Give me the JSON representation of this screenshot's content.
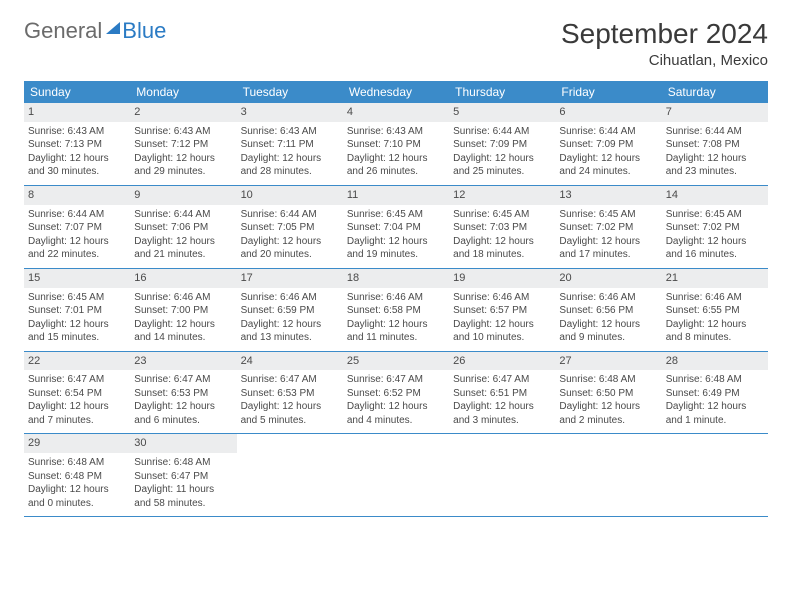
{
  "brand": {
    "part1": "General",
    "part2": "Blue"
  },
  "title": "September 2024",
  "location": "Cihuatlan, Mexico",
  "colors": {
    "header_bg": "#3b8bc9",
    "header_text": "#ffffff",
    "day_num_bg": "#ecedee",
    "border": "#3b8bc9",
    "text": "#4a4a4a",
    "brand_blue": "#2b7bc4"
  },
  "weekdays": [
    "Sunday",
    "Monday",
    "Tuesday",
    "Wednesday",
    "Thursday",
    "Friday",
    "Saturday"
  ],
  "weeks": [
    [
      {
        "n": "1",
        "sr": "Sunrise: 6:43 AM",
        "ss": "Sunset: 7:13 PM",
        "d1": "Daylight: 12 hours",
        "d2": "and 30 minutes."
      },
      {
        "n": "2",
        "sr": "Sunrise: 6:43 AM",
        "ss": "Sunset: 7:12 PM",
        "d1": "Daylight: 12 hours",
        "d2": "and 29 minutes."
      },
      {
        "n": "3",
        "sr": "Sunrise: 6:43 AM",
        "ss": "Sunset: 7:11 PM",
        "d1": "Daylight: 12 hours",
        "d2": "and 28 minutes."
      },
      {
        "n": "4",
        "sr": "Sunrise: 6:43 AM",
        "ss": "Sunset: 7:10 PM",
        "d1": "Daylight: 12 hours",
        "d2": "and 26 minutes."
      },
      {
        "n": "5",
        "sr": "Sunrise: 6:44 AM",
        "ss": "Sunset: 7:09 PM",
        "d1": "Daylight: 12 hours",
        "d2": "and 25 minutes."
      },
      {
        "n": "6",
        "sr": "Sunrise: 6:44 AM",
        "ss": "Sunset: 7:09 PM",
        "d1": "Daylight: 12 hours",
        "d2": "and 24 minutes."
      },
      {
        "n": "7",
        "sr": "Sunrise: 6:44 AM",
        "ss": "Sunset: 7:08 PM",
        "d1": "Daylight: 12 hours",
        "d2": "and 23 minutes."
      }
    ],
    [
      {
        "n": "8",
        "sr": "Sunrise: 6:44 AM",
        "ss": "Sunset: 7:07 PM",
        "d1": "Daylight: 12 hours",
        "d2": "and 22 minutes."
      },
      {
        "n": "9",
        "sr": "Sunrise: 6:44 AM",
        "ss": "Sunset: 7:06 PM",
        "d1": "Daylight: 12 hours",
        "d2": "and 21 minutes."
      },
      {
        "n": "10",
        "sr": "Sunrise: 6:44 AM",
        "ss": "Sunset: 7:05 PM",
        "d1": "Daylight: 12 hours",
        "d2": "and 20 minutes."
      },
      {
        "n": "11",
        "sr": "Sunrise: 6:45 AM",
        "ss": "Sunset: 7:04 PM",
        "d1": "Daylight: 12 hours",
        "d2": "and 19 minutes."
      },
      {
        "n": "12",
        "sr": "Sunrise: 6:45 AM",
        "ss": "Sunset: 7:03 PM",
        "d1": "Daylight: 12 hours",
        "d2": "and 18 minutes."
      },
      {
        "n": "13",
        "sr": "Sunrise: 6:45 AM",
        "ss": "Sunset: 7:02 PM",
        "d1": "Daylight: 12 hours",
        "d2": "and 17 minutes."
      },
      {
        "n": "14",
        "sr": "Sunrise: 6:45 AM",
        "ss": "Sunset: 7:02 PM",
        "d1": "Daylight: 12 hours",
        "d2": "and 16 minutes."
      }
    ],
    [
      {
        "n": "15",
        "sr": "Sunrise: 6:45 AM",
        "ss": "Sunset: 7:01 PM",
        "d1": "Daylight: 12 hours",
        "d2": "and 15 minutes."
      },
      {
        "n": "16",
        "sr": "Sunrise: 6:46 AM",
        "ss": "Sunset: 7:00 PM",
        "d1": "Daylight: 12 hours",
        "d2": "and 14 minutes."
      },
      {
        "n": "17",
        "sr": "Sunrise: 6:46 AM",
        "ss": "Sunset: 6:59 PM",
        "d1": "Daylight: 12 hours",
        "d2": "and 13 minutes."
      },
      {
        "n": "18",
        "sr": "Sunrise: 6:46 AM",
        "ss": "Sunset: 6:58 PM",
        "d1": "Daylight: 12 hours",
        "d2": "and 11 minutes."
      },
      {
        "n": "19",
        "sr": "Sunrise: 6:46 AM",
        "ss": "Sunset: 6:57 PM",
        "d1": "Daylight: 12 hours",
        "d2": "and 10 minutes."
      },
      {
        "n": "20",
        "sr": "Sunrise: 6:46 AM",
        "ss": "Sunset: 6:56 PM",
        "d1": "Daylight: 12 hours",
        "d2": "and 9 minutes."
      },
      {
        "n": "21",
        "sr": "Sunrise: 6:46 AM",
        "ss": "Sunset: 6:55 PM",
        "d1": "Daylight: 12 hours",
        "d2": "and 8 minutes."
      }
    ],
    [
      {
        "n": "22",
        "sr": "Sunrise: 6:47 AM",
        "ss": "Sunset: 6:54 PM",
        "d1": "Daylight: 12 hours",
        "d2": "and 7 minutes."
      },
      {
        "n": "23",
        "sr": "Sunrise: 6:47 AM",
        "ss": "Sunset: 6:53 PM",
        "d1": "Daylight: 12 hours",
        "d2": "and 6 minutes."
      },
      {
        "n": "24",
        "sr": "Sunrise: 6:47 AM",
        "ss": "Sunset: 6:53 PM",
        "d1": "Daylight: 12 hours",
        "d2": "and 5 minutes."
      },
      {
        "n": "25",
        "sr": "Sunrise: 6:47 AM",
        "ss": "Sunset: 6:52 PM",
        "d1": "Daylight: 12 hours",
        "d2": "and 4 minutes."
      },
      {
        "n": "26",
        "sr": "Sunrise: 6:47 AM",
        "ss": "Sunset: 6:51 PM",
        "d1": "Daylight: 12 hours",
        "d2": "and 3 minutes."
      },
      {
        "n": "27",
        "sr": "Sunrise: 6:48 AM",
        "ss": "Sunset: 6:50 PM",
        "d1": "Daylight: 12 hours",
        "d2": "and 2 minutes."
      },
      {
        "n": "28",
        "sr": "Sunrise: 6:48 AM",
        "ss": "Sunset: 6:49 PM",
        "d1": "Daylight: 12 hours",
        "d2": "and 1 minute."
      }
    ],
    [
      {
        "n": "29",
        "sr": "Sunrise: 6:48 AM",
        "ss": "Sunset: 6:48 PM",
        "d1": "Daylight: 12 hours",
        "d2": "and 0 minutes."
      },
      {
        "n": "30",
        "sr": "Sunrise: 6:48 AM",
        "ss": "Sunset: 6:47 PM",
        "d1": "Daylight: 11 hours",
        "d2": "and 58 minutes."
      },
      null,
      null,
      null,
      null,
      null
    ]
  ]
}
